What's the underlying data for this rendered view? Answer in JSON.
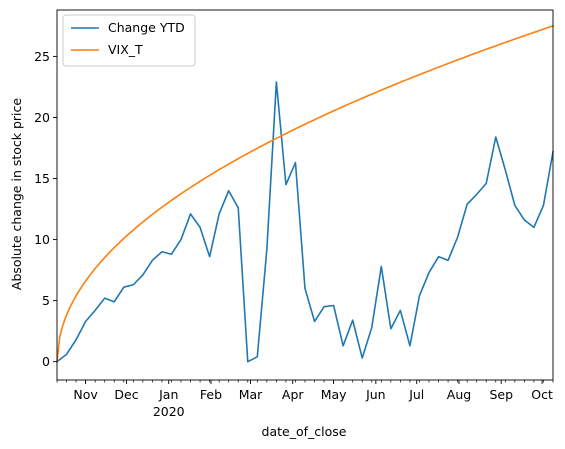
{
  "chart_data": {
    "type": "line",
    "xlabel": "date_of_close",
    "ylabel": "Absolute change in stock price",
    "ylim": [
      -1.5,
      28.8
    ],
    "xlim": [
      "2019-10-11",
      "2020-10-09"
    ],
    "x_tick_labels": [
      {
        "date": "2019-11-01",
        "label": "Nov"
      },
      {
        "date": "2019-12-01",
        "label": "Dec"
      },
      {
        "date": "2020-01-01",
        "label": "Jan",
        "sublabel": "2020"
      },
      {
        "date": "2020-02-01",
        "label": "Feb"
      },
      {
        "date": "2020-03-01",
        "label": "Mar"
      },
      {
        "date": "2020-04-01",
        "label": "Apr"
      },
      {
        "date": "2020-05-01",
        "label": "May"
      },
      {
        "date": "2020-06-01",
        "label": "Jun"
      },
      {
        "date": "2020-07-01",
        "label": "Jul"
      },
      {
        "date": "2020-08-01",
        "label": "Aug"
      },
      {
        "date": "2020-09-01",
        "label": "Sep"
      },
      {
        "date": "2020-10-01",
        "label": "Oct"
      }
    ],
    "y_ticks": [
      0,
      5,
      10,
      15,
      20,
      25
    ],
    "legend_position": "top-left",
    "grid": false,
    "series": [
      {
        "name": "Change YTD",
        "color": "#1f77b4",
        "points": [
          [
            "2019-10-11",
            0.0
          ],
          [
            "2019-10-18",
            0.6
          ],
          [
            "2019-10-25",
            1.8
          ],
          [
            "2019-11-01",
            3.3
          ],
          [
            "2019-11-08",
            4.2
          ],
          [
            "2019-11-15",
            5.2
          ],
          [
            "2019-11-22",
            4.9
          ],
          [
            "2019-11-29",
            6.1
          ],
          [
            "2019-12-06",
            6.3
          ],
          [
            "2019-12-13",
            7.1
          ],
          [
            "2019-12-20",
            8.3
          ],
          [
            "2019-12-27",
            9.0
          ],
          [
            "2020-01-03",
            8.8
          ],
          [
            "2020-01-10",
            10.0
          ],
          [
            "2020-01-17",
            12.1
          ],
          [
            "2020-01-24",
            11.0
          ],
          [
            "2020-01-31",
            8.6
          ],
          [
            "2020-02-07",
            12.1
          ],
          [
            "2020-02-14",
            14.0
          ],
          [
            "2020-02-21",
            12.6
          ],
          [
            "2020-02-28",
            0.0
          ],
          [
            "2020-03-06",
            0.4
          ],
          [
            "2020-03-13",
            9.2
          ],
          [
            "2020-03-20",
            22.9
          ],
          [
            "2020-03-27",
            14.5
          ],
          [
            "2020-04-03",
            16.3
          ],
          [
            "2020-04-10",
            6.0
          ],
          [
            "2020-04-17",
            3.3
          ],
          [
            "2020-04-24",
            4.5
          ],
          [
            "2020-05-01",
            4.6
          ],
          [
            "2020-05-08",
            1.3
          ],
          [
            "2020-05-15",
            3.4
          ],
          [
            "2020-05-22",
            0.3
          ],
          [
            "2020-05-29",
            2.8
          ],
          [
            "2020-06-05",
            7.8
          ],
          [
            "2020-06-12",
            2.7
          ],
          [
            "2020-06-19",
            4.2
          ],
          [
            "2020-06-26",
            1.3
          ],
          [
            "2020-07-03",
            5.4
          ],
          [
            "2020-07-10",
            7.3
          ],
          [
            "2020-07-17",
            8.6
          ],
          [
            "2020-07-24",
            8.3
          ],
          [
            "2020-07-31",
            10.2
          ],
          [
            "2020-08-07",
            12.9
          ],
          [
            "2020-08-14",
            13.7
          ],
          [
            "2020-08-21",
            14.6
          ],
          [
            "2020-08-28",
            18.4
          ],
          [
            "2020-09-04",
            15.7
          ],
          [
            "2020-09-11",
            12.8
          ],
          [
            "2020-09-18",
            11.6
          ],
          [
            "2020-09-25",
            11.0
          ],
          [
            "2020-10-02",
            12.8
          ],
          [
            "2020-10-09",
            17.2
          ]
        ]
      },
      {
        "name": "VIX_T",
        "color": "#ff7f0e",
        "function": "sqrt",
        "points": [
          [
            "2019-10-11",
            0.0
          ],
          [
            "2019-10-18",
            3.8
          ],
          [
            "2019-10-25",
            5.4
          ],
          [
            "2019-11-01",
            6.6
          ],
          [
            "2019-11-15",
            8.5
          ],
          [
            "2019-12-06",
            10.7
          ],
          [
            "2020-01-03",
            13.2
          ],
          [
            "2020-02-07",
            15.8
          ],
          [
            "2020-03-06",
            17.7
          ],
          [
            "2020-04-03",
            19.4
          ],
          [
            "2020-05-01",
            21.0
          ],
          [
            "2020-06-05",
            22.8
          ],
          [
            "2020-07-03",
            24.3
          ],
          [
            "2020-08-07",
            25.9
          ],
          [
            "2020-09-04",
            27.1
          ],
          [
            "2020-10-09",
            27.5
          ]
        ]
      }
    ]
  }
}
